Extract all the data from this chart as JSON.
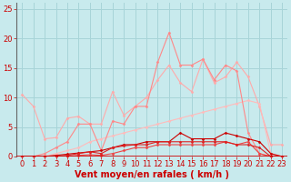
{
  "background_color": "#c8eaed",
  "grid_color": "#a8d4d8",
  "xlabel": "Vent moyen/en rafales ( km/h )",
  "xlabel_color": "#cc0000",
  "xlabel_fontsize": 7.0,
  "tick_color": "#cc0000",
  "tick_fontsize": 6.0,
  "ylim": [
    0,
    26
  ],
  "xlim": [
    -0.5,
    23.5
  ],
  "yticks": [
    0,
    5,
    10,
    15,
    20,
    25
  ],
  "xticks": [
    0,
    1,
    2,
    3,
    4,
    5,
    6,
    7,
    8,
    9,
    10,
    11,
    12,
    13,
    14,
    15,
    16,
    17,
    18,
    19,
    20,
    21,
    22,
    23
  ],
  "series": [
    {
      "x": [
        0,
        1,
        2,
        3,
        4,
        5,
        6,
        7,
        8,
        9,
        10,
        11,
        12,
        13,
        14,
        15,
        16,
        17,
        18,
        19,
        20,
        21,
        22,
        23
      ],
      "y": [
        10.5,
        8.5,
        3.0,
        3.2,
        6.5,
        6.8,
        5.5,
        5.5,
        11.0,
        7.0,
        8.5,
        10.0,
        13.0,
        15.5,
        12.5,
        11.0,
        16.5,
        12.5,
        13.5,
        16.0,
        13.5,
        8.5,
        2.0,
        2.0
      ],
      "color": "#ffaaaa",
      "lw": 0.8,
      "marker": "D",
      "ms": 1.5,
      "zorder": 2
    },
    {
      "x": [
        0,
        1,
        2,
        3,
        4,
        5,
        6,
        7,
        8,
        9,
        10,
        11,
        12,
        13,
        14,
        15,
        16,
        17,
        18,
        19,
        20,
        21,
        22,
        23
      ],
      "y": [
        0.0,
        0.0,
        0.5,
        1.5,
        2.5,
        5.5,
        5.5,
        1.0,
        6.0,
        5.5,
        8.5,
        8.5,
        16.0,
        21.0,
        15.5,
        15.5,
        16.5,
        13.0,
        15.5,
        14.5,
        4.0,
        0.5,
        0.0,
        0.0
      ],
      "color": "#ff8888",
      "lw": 0.8,
      "marker": "D",
      "ms": 1.5,
      "zorder": 3
    },
    {
      "x": [
        0,
        1,
        2,
        3,
        4,
        5,
        6,
        7,
        8,
        9,
        10,
        11,
        12,
        13,
        14,
        15,
        16,
        17,
        18,
        19,
        20,
        21,
        22,
        23
      ],
      "y": [
        0.0,
        0.0,
        0.0,
        0.5,
        1.0,
        1.5,
        2.5,
        3.0,
        3.5,
        4.0,
        4.5,
        5.0,
        5.5,
        6.0,
        6.5,
        7.0,
        7.5,
        8.0,
        8.5,
        9.0,
        9.5,
        9.0,
        0.5,
        0.0
      ],
      "color": "#ffbbbb",
      "lw": 0.8,
      "marker": "D",
      "ms": 1.5,
      "zorder": 2
    },
    {
      "x": [
        0,
        1,
        2,
        3,
        4,
        5,
        6,
        7,
        8,
        9,
        10,
        11,
        12,
        13,
        14,
        15,
        16,
        17,
        18,
        19,
        20,
        21,
        22,
        23
      ],
      "y": [
        0.0,
        0.0,
        0.0,
        0.2,
        0.4,
        0.6,
        0.8,
        1.0,
        1.5,
        2.0,
        2.0,
        2.5,
        2.5,
        2.5,
        4.0,
        3.0,
        3.0,
        3.0,
        4.0,
        3.5,
        3.0,
        2.5,
        0.5,
        0.0
      ],
      "color": "#cc0000",
      "lw": 0.8,
      "marker": "D",
      "ms": 1.5,
      "zorder": 4
    },
    {
      "x": [
        0,
        1,
        2,
        3,
        4,
        5,
        6,
        7,
        8,
        9,
        10,
        11,
        12,
        13,
        14,
        15,
        16,
        17,
        18,
        19,
        20,
        21,
        22,
        23
      ],
      "y": [
        0.0,
        0.0,
        0.0,
        0.0,
        0.2,
        0.5,
        0.8,
        0.5,
        1.5,
        1.8,
        2.0,
        2.0,
        2.5,
        2.5,
        2.5,
        2.5,
        2.5,
        2.5,
        2.5,
        2.0,
        2.0,
        1.5,
        0.0,
        0.0
      ],
      "color": "#dd2222",
      "lw": 0.8,
      "marker": "D",
      "ms": 1.5,
      "zorder": 4
    },
    {
      "x": [
        0,
        1,
        2,
        3,
        4,
        5,
        6,
        7,
        8,
        9,
        10,
        11,
        12,
        13,
        14,
        15,
        16,
        17,
        18,
        19,
        20,
        21,
        22,
        23
      ],
      "y": [
        0.0,
        0.0,
        0.0,
        0.0,
        0.0,
        0.2,
        0.3,
        0.2,
        0.5,
        1.0,
        1.5,
        1.5,
        2.0,
        2.0,
        2.0,
        2.0,
        2.0,
        2.0,
        2.5,
        2.0,
        2.5,
        0.5,
        0.0,
        0.0
      ],
      "color": "#ee4444",
      "lw": 0.8,
      "marker": "D",
      "ms": 1.5,
      "zorder": 3
    }
  ],
  "hline_color": "#cc0000",
  "hline_lw": 1.2,
  "spine_color": "#555555",
  "left_spine_color": "#666666"
}
